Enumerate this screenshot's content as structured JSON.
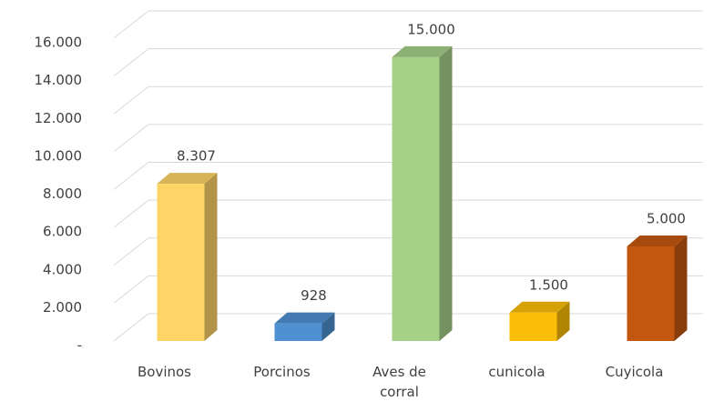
{
  "chart_data": {
    "type": "bar3d",
    "categories": [
      "Bovinos",
      "Porcinos",
      "Aves de corral",
      "cunicola",
      "Cuyicola"
    ],
    "values": [
      8307,
      928,
      15000,
      1500,
      5000
    ],
    "value_labels": [
      "8.307",
      "928",
      "15.000",
      "1.500",
      "5.000"
    ],
    "colors": [
      "#fdd466",
      "#4f90d0",
      "#a6cf88",
      "#fbbd07",
      "#c4570f"
    ],
    "ylim": [
      0,
      16000
    ],
    "yticks": [
      {
        "value": 0,
        "label": "-"
      },
      {
        "value": 2000,
        "label": "2.000"
      },
      {
        "value": 4000,
        "label": "4.000"
      },
      {
        "value": 6000,
        "label": "6.000"
      },
      {
        "value": 8000,
        "label": "8.000"
      },
      {
        "value": 10000,
        "label": "10.000"
      },
      {
        "value": 12000,
        "label": "12.000"
      },
      {
        "value": 14000,
        "label": "14.000"
      },
      {
        "value": 16000,
        "label": "16.000"
      }
    ],
    "grid": true
  }
}
